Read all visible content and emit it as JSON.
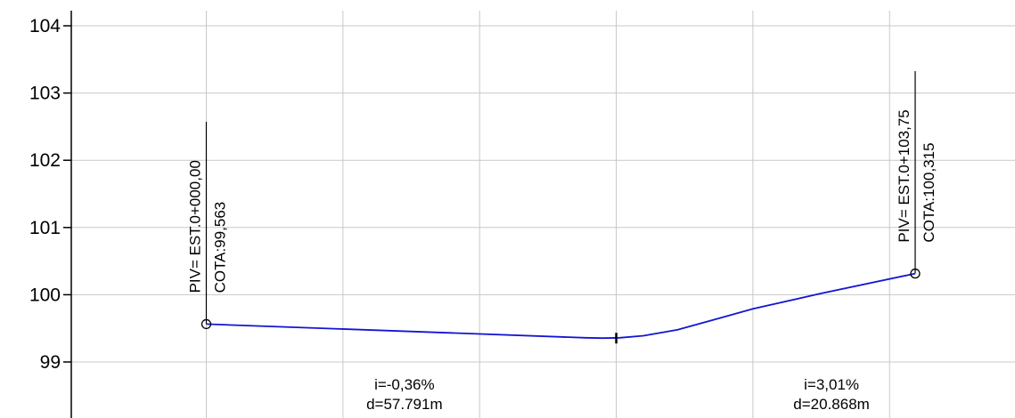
{
  "chart_data": {
    "type": "line",
    "title": "",
    "xlabel": "",
    "ylabel": "",
    "x_unit": "m",
    "xlim": [
      -20.5,
      133
    ],
    "ylim": [
      98.7,
      104.3
    ],
    "grid": true,
    "y_ticks": [
      99,
      100,
      101,
      102,
      103,
      104
    ],
    "x_gridlines": [
      0,
      20,
      40,
      60,
      80,
      100,
      120
    ],
    "series": [
      {
        "values": [
          [
            0,
            99.563
          ],
          [
            55.5,
            99.36
          ],
          [
            58,
            99.354
          ],
          [
            60.5,
            99.36
          ],
          [
            64,
            99.39
          ],
          [
            69,
            99.48
          ],
          [
            74,
            99.62
          ],
          [
            80,
            99.79
          ],
          [
            90,
            100.02
          ],
          [
            103.75,
            100.315
          ]
        ]
      }
    ],
    "pivs": [
      {
        "x": 0,
        "y": 99.563,
        "label": "PIV= EST.0+000,00",
        "cota": "COTA:99,563"
      },
      {
        "x": 103.75,
        "y": 100.315,
        "label": "PIV= EST.0+103,75",
        "cota": "COTA:100,315"
      }
    ],
    "tick_mark": {
      "x": 60,
      "y": 99.354
    },
    "grades": [
      {
        "x": 29,
        "i": "i=-0,36%",
        "d": "d=57.791m"
      },
      {
        "x": 91.5,
        "i": "i=3,01%",
        "d": "d=20.868m"
      }
    ],
    "colors": {
      "line": "#1414d4",
      "grid": "#c8c8c8",
      "text": "#000000"
    }
  }
}
